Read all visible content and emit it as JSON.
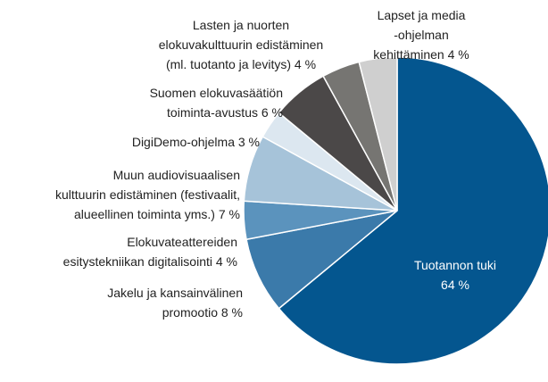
{
  "chart_data": {
    "type": "pie",
    "categories": [
      "Tuotannon tuki",
      "Jakelu ja kansainvälinen\npromootio",
      "Elokuvateattereiden\nesitystekniikan digitalisointi",
      "Muun audiovisuaalisen\nkulttuurin edistäminen (festivaalit,\nalueellinen toiminta yms.)",
      "DigiDemo-ohjelma",
      "Suomen elokuvasäätiön\ntoiminta-avustus",
      "Lasten ja nuorten\nelokuvakulttuurin edistäminen\n(ml. tuotanto ja levitys)",
      "Lapset ja media\n-ohjelman\nkehittäminen"
    ],
    "values": [
      64,
      8,
      4,
      7,
      3,
      6,
      4,
      4
    ],
    "value_labels": [
      "64 %",
      "8 %",
      "4 %",
      "7 %",
      "3 %",
      "6 %",
      "4 %",
      "4 %"
    ],
    "colors": [
      "#04568f",
      "#3b7aaa",
      "#5b93bd",
      "#a6c3d9",
      "#dce7f0",
      "#4b4848",
      "#767572",
      "#cfcfcf"
    ]
  }
}
